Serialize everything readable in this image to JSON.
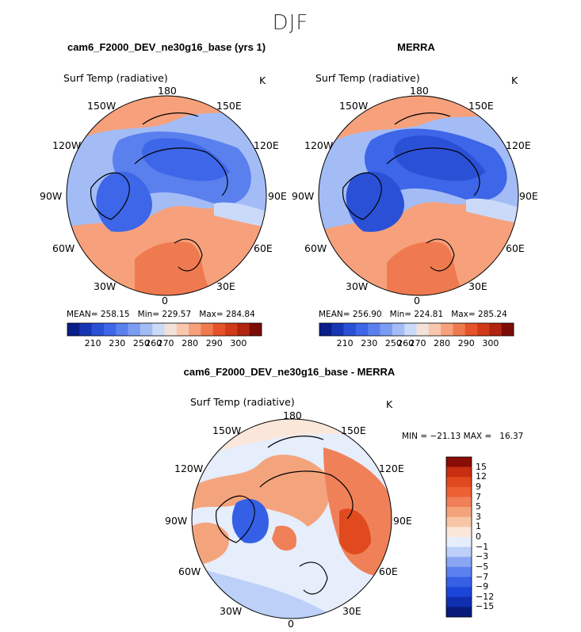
{
  "title": "DJF",
  "colors": {
    "abs_palette": [
      "#0a1e8a",
      "#1636b4",
      "#2a50d6",
      "#3d66e8",
      "#5a80ee",
      "#7c9cf2",
      "#a3bcf6",
      "#cbdaf9",
      "#f2e2d8",
      "#f9c7ad",
      "#f6a17c",
      "#f07a50",
      "#e6522a",
      "#d13a18",
      "#b02410",
      "#7c0c08"
    ],
    "diff_palette": [
      "#081a7a",
      "#0f2fb0",
      "#1c46d8",
      "#3560e6",
      "#5c80ee",
      "#8aa6f3",
      "#bcd0f8",
      "#e6edfb",
      "#fbe6da",
      "#f8c6a6",
      "#f4a47c",
      "#f08058",
      "#ec6034",
      "#e04a1e",
      "#c82e10",
      "#8a0c06"
    ],
    "land_outline": "#000000"
  },
  "panels": [
    {
      "title": "cam6_F2000_DEV_ne30g16_base (yrs 1)",
      "variable": "Surf Temp (radiative)",
      "units": "K",
      "longitude_labels": [
        "180",
        "150E",
        "120E",
        "90E",
        "60E",
        "30E",
        "0",
        "30W",
        "60W",
        "90W",
        "120W",
        "150W"
      ],
      "stats": {
        "mean_label": "MEAN=",
        "mean": "258.15",
        "min_label": "Min=",
        "min": "229.57",
        "max_label": "Max=",
        "max": "284.84"
      },
      "colorbar_ticks": [
        "210",
        "230",
        "250",
        "260",
        "270",
        "280",
        "290",
        "300"
      ]
    },
    {
      "title": "MERRA",
      "variable": "Surf Temp (radiative)",
      "units": "K",
      "longitude_labels": [
        "180",
        "150E",
        "120E",
        "90E",
        "60E",
        "30E",
        "0",
        "30W",
        "60W",
        "90W",
        "120W",
        "150W"
      ],
      "stats": {
        "mean_label": "MEAN=",
        "mean": "256.90",
        "min_label": "Min=",
        "min": "224.81",
        "max_label": "Max=",
        "max": "285.24"
      },
      "colorbar_ticks": [
        "210",
        "230",
        "250",
        "260",
        "270",
        "280",
        "290",
        "300"
      ]
    },
    {
      "title": "cam6_F2000_DEV_ne30g16_base - MERRA",
      "variable": "Surf Temp (radiative)",
      "units": "K",
      "longitude_labels": [
        "180",
        "150E",
        "120E",
        "90E",
        "60E",
        "30E",
        "0",
        "30W",
        "60W",
        "90W",
        "120W",
        "150W"
      ],
      "stats_text": "MIN = −21.13 MAX =   16.37",
      "colorbar_ticks": [
        "15",
        "12",
        "9",
        "7",
        "5",
        "3",
        "1",
        "0",
        "−1",
        "−3",
        "−5",
        "−7",
        "−9",
        "−12",
        "−15"
      ]
    }
  ],
  "chart_data": [
    {
      "type": "heatmap",
      "projection": "north polar stereographic",
      "title": "cam6_F2000_DEV_ne30g16_base (yrs 1)",
      "variable": "Surf Temp (radiative)",
      "units": "K",
      "contour_levels": [
        210,
        220,
        230,
        240,
        250,
        255,
        260,
        265,
        270,
        275,
        280,
        285,
        290,
        295,
        300
      ],
      "stats": {
        "mean": 258.15,
        "min": 229.57,
        "max": 284.84
      }
    },
    {
      "type": "heatmap",
      "projection": "north polar stereographic",
      "title": "MERRA",
      "variable": "Surf Temp (radiative)",
      "units": "K",
      "contour_levels": [
        210,
        220,
        230,
        240,
        250,
        255,
        260,
        265,
        270,
        275,
        280,
        285,
        290,
        295,
        300
      ],
      "stats": {
        "mean": 256.9,
        "min": 224.81,
        "max": 285.24
      }
    },
    {
      "type": "heatmap",
      "projection": "north polar stereographic",
      "title": "cam6_F2000_DEV_ne30g16_base - MERRA",
      "variable": "Surf Temp (radiative)",
      "units": "K",
      "contour_levels": [
        -15,
        -12,
        -9,
        -7,
        -5,
        -3,
        -1,
        0,
        1,
        3,
        5,
        7,
        9,
        12,
        15
      ],
      "stats": {
        "min": -21.13,
        "max": 16.37
      }
    }
  ]
}
